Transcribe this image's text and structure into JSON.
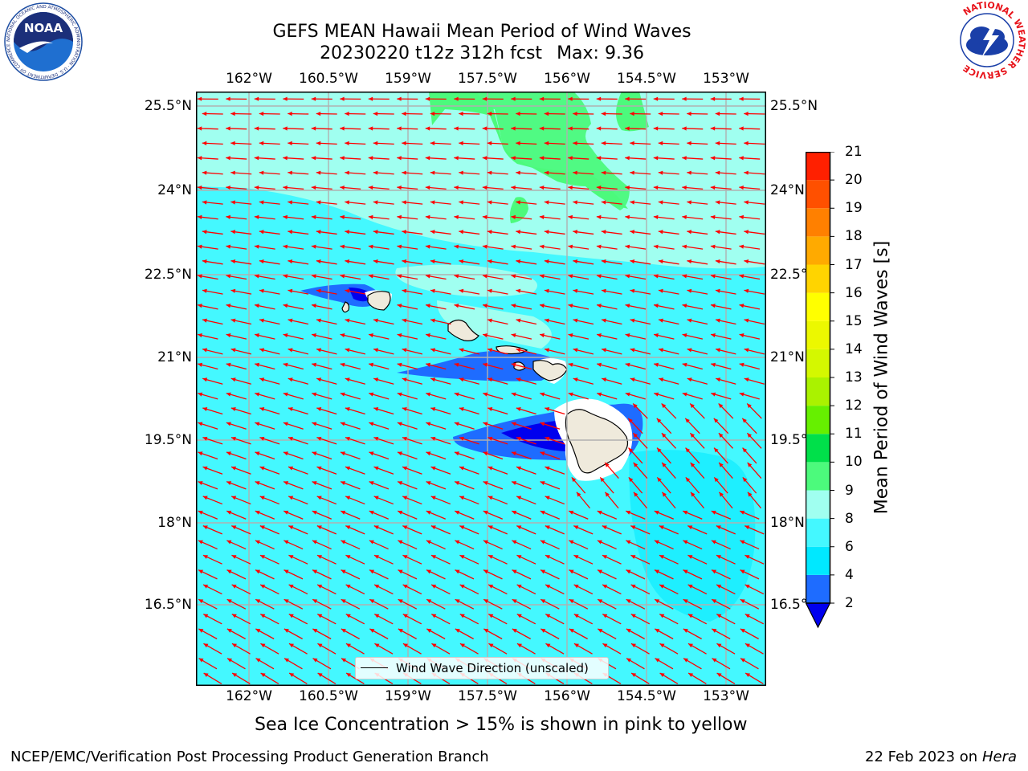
{
  "title": {
    "line1": "GEFS MEAN Hawaii Mean Period of Wind Waves",
    "line2": "20230220 t12z 312h fcst",
    "max": "Max: 9.36"
  },
  "axes": {
    "lon_ticks": [
      "162°W",
      "160.5°W",
      "159°W",
      "157.5°W",
      "156°W",
      "154.5°W",
      "153°W"
    ],
    "lat_ticks": [
      "25.5°N",
      "24°N",
      "22.5°N",
      "21°N",
      "19.5°N",
      "18°N",
      "16.5°N"
    ],
    "lon_range": [
      -163,
      -152.3
    ],
    "lat_range": [
      15.2,
      25.75
    ]
  },
  "colorbar": {
    "title": "Mean Period of Wind Waves [s]",
    "levels": [
      2,
      4,
      6,
      8,
      9,
      10,
      11,
      12,
      13,
      14,
      15,
      16,
      17,
      18,
      19,
      20,
      21
    ],
    "colors": [
      "#1e6cff",
      "#00e8ff",
      "#44f8ff",
      "#a0fff0",
      "#4cfa7c",
      "#00e04a",
      "#66f000",
      "#aaf200",
      "#d4f800",
      "#ecf800",
      "#ffff00",
      "#ffd400",
      "#ffaa00",
      "#ff8000",
      "#ff5000",
      "#ff2000"
    ],
    "under_color": "#0000ee",
    "over_color": "#ff0000"
  },
  "map": {
    "ocean_color": "#44f8ff",
    "land_color": "#efeadc",
    "arrow_color": "#ff0000"
  },
  "legend": {
    "label": "Wind Wave Direction (unscaled)"
  },
  "footnote": "Sea Ice Concentration > 15% is shown in pink to yellow",
  "credits": {
    "left": "NCEP/EMC/Verification Post Processing Product Generation Branch",
    "right_date": "22 Feb 2023 on",
    "right_host": "Hera"
  },
  "logos": {
    "noaa": "NOAA",
    "noaa_ring": "NATIONAL OCEANIC AND ATMOSPHERIC ADMINISTRATION · U.S. DEPARTMENT OF COMMERCE",
    "nws_ring": "NATIONAL WEATHER SERVICE"
  }
}
